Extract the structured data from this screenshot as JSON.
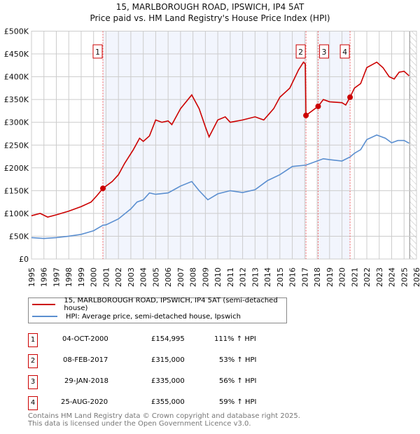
{
  "chart_data": {
    "type": "line",
    "title": "15, MARLBOROUGH ROAD, IPSWICH, IP4 5AT",
    "subtitle": "Price paid vs. HM Land Registry's House Price Index (HPI)",
    "xlim": [
      1995,
      2026
    ],
    "ylim": [
      0,
      500000
    ],
    "x_ticks": [
      "1995",
      "1996",
      "1997",
      "1998",
      "1999",
      "2000",
      "2001",
      "2002",
      "2003",
      "2004",
      "2005",
      "2006",
      "2007",
      "2008",
      "2009",
      "2010",
      "2011",
      "2012",
      "2013",
      "2014",
      "2015",
      "2016",
      "2017",
      "2018",
      "2019",
      "2020",
      "2021",
      "2022",
      "2023",
      "2024",
      "2025",
      "2026"
    ],
    "y_ticks": [
      {
        "v": 0,
        "label": "£0"
      },
      {
        "v": 50000,
        "label": "£50K"
      },
      {
        "v": 100000,
        "label": "£100K"
      },
      {
        "v": 150000,
        "label": "£150K"
      },
      {
        "v": 200000,
        "label": "£200K"
      },
      {
        "v": 250000,
        "label": "£250K"
      },
      {
        "v": 300000,
        "label": "£300K"
      },
      {
        "v": 350000,
        "label": "£350K"
      },
      {
        "v": 400000,
        "label": "£400K"
      },
      {
        "v": 450000,
        "label": "£450K"
      },
      {
        "v": 500000,
        "label": "£500K"
      }
    ],
    "grid": true,
    "legend_placement": "below",
    "series": [
      {
        "name": "15, MARLBOROUGH ROAD, IPSWICH, IP4 5AT (semi-detached house)",
        "color": "#cc0000",
        "x": [
          1995,
          1995.7,
          1996.3,
          1997,
          1998,
          1999,
          1999.8,
          2000.3,
          2000.75,
          2001.5,
          2002,
          2002.5,
          2003.2,
          2003.7,
          2004,
          2004.5,
          2005,
          2005.5,
          2006,
          2006.3,
          2007,
          2007.9,
          2008.5,
          2009,
          2009.3,
          2010,
          2010.6,
          2011,
          2012,
          2013,
          2013.7,
          2014.5,
          2015,
          2015.8,
          2016.5,
          2016.9,
          2017.05,
          2017.1,
          2018.08,
          2018.5,
          2019,
          2020,
          2020.3,
          2020.65,
          2021,
          2021.5,
          2022,
          2022.8,
          2023.3,
          2023.8,
          2024.2,
          2024.6,
          2025,
          2025.4
        ],
        "y": [
          95000,
          100000,
          92000,
          97000,
          105000,
          115000,
          125000,
          140000,
          154995,
          170000,
          185000,
          210000,
          240000,
          265000,
          258000,
          270000,
          305000,
          300000,
          303000,
          295000,
          330000,
          360000,
          330000,
          290000,
          268000,
          305000,
          312000,
          300000,
          305000,
          312000,
          305000,
          330000,
          355000,
          375000,
          415000,
          432000,
          428000,
          315000,
          335000,
          350000,
          345000,
          343000,
          338000,
          355000,
          375000,
          385000,
          420000,
          432000,
          420000,
          400000,
          395000,
          410000,
          412000,
          402000
        ]
      },
      {
        "name": "HPI: Average price, semi-detached house, Ipswich",
        "color": "#5b8fd0",
        "x": [
          1995,
          1996,
          1997,
          1998,
          1999,
          2000,
          2000.75,
          2001,
          2002,
          2003,
          2003.5,
          2004,
          2004.5,
          2005,
          2006,
          2007,
          2007.9,
          2008.5,
          2009.2,
          2010,
          2011,
          2012,
          2013,
          2014,
          2015,
          2016,
          2017.1,
          2018,
          2018.5,
          2019,
          2020,
          2020.65,
          2021,
          2021.5,
          2022,
          2022.8,
          2023.5,
          2024,
          2024.5,
          2025,
          2025.4
        ],
        "y": [
          47000,
          45000,
          47000,
          50000,
          54000,
          62000,
          74000,
          75000,
          88000,
          110000,
          125000,
          130000,
          145000,
          142000,
          145000,
          160000,
          170000,
          150000,
          130000,
          143000,
          150000,
          146000,
          152000,
          172000,
          185000,
          203000,
          206000,
          215000,
          220000,
          218000,
          215000,
          224000,
          232000,
          240000,
          262000,
          272000,
          265000,
          255000,
          260000,
          260000,
          254000
        ]
      }
    ],
    "shaded_ranges": [
      [
        2000.75,
        2017.1
      ],
      [
        2018.08,
        2020.65
      ]
    ],
    "hatched_from": 2025.45,
    "sales": [
      {
        "n": "1",
        "x": 2000.75,
        "y": 154995
      },
      {
        "n": "2",
        "x": 2017.1,
        "y": 315000
      },
      {
        "n": "3",
        "x": 2018.08,
        "y": 335000
      },
      {
        "n": "4",
        "x": 2020.65,
        "y": 355000
      }
    ]
  },
  "header": {
    "title": "15, MARLBOROUGH ROAD, IPSWICH, IP4 5AT",
    "subtitle": "Price paid vs. HM Land Registry's House Price Index (HPI)"
  },
  "legend": {
    "property": "15, MARLBOROUGH ROAD, IPSWICH, IP4 5AT (semi-detached house)",
    "hpi": "HPI: Average price, semi-detached house, Ipswich"
  },
  "transactions": [
    {
      "n": "1",
      "date": "04-OCT-2000",
      "price": "£154,995",
      "hpi": "111% ↑ HPI"
    },
    {
      "n": "2",
      "date": "08-FEB-2017",
      "price": "£315,000",
      "hpi": "53% ↑ HPI"
    },
    {
      "n": "3",
      "date": "29-JAN-2018",
      "price": "£335,000",
      "hpi": "56% ↑ HPI"
    },
    {
      "n": "4",
      "date": "25-AUG-2020",
      "price": "£355,000",
      "hpi": "59% ↑ HPI"
    }
  ],
  "footer": {
    "line1": "Contains HM Land Registry data © Crown copyright and database right 2025.",
    "line2": "This data is licensed under the Open Government Licence v3.0."
  }
}
